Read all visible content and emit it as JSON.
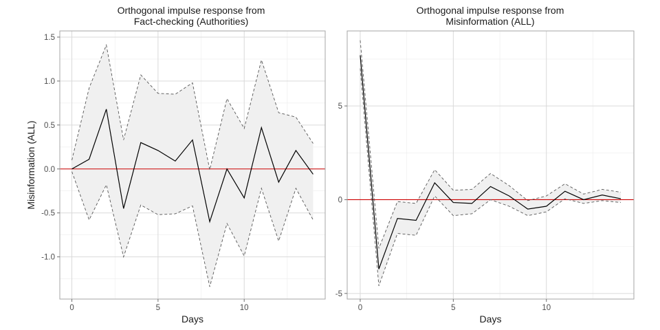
{
  "chart_data": [
    {
      "type": "line",
      "title": [
        "Orthogonal impulse response from",
        "Fact-checking  (Authorities)"
      ],
      "xlabel": "Days",
      "ylabel": "Misinformation (ALL)",
      "xlim": [
        -0.7,
        14.7
      ],
      "ylim": [
        -1.48,
        1.57
      ],
      "x_ticks": [
        0,
        5,
        10
      ],
      "x_tick_labels": [
        "0",
        "5",
        "10"
      ],
      "y_ticks": [
        -1.0,
        -0.5,
        0.0,
        0.5,
        1.0,
        1.5
      ],
      "y_tick_labels": [
        "-1.0",
        "-0.5",
        "0.0",
        "0.5",
        "1.0",
        "1.5"
      ],
      "grid": true,
      "zero_line_color": "#cc0000",
      "band_color": "#f0f0f0",
      "x": [
        0,
        1,
        2,
        3,
        4,
        5,
        6,
        7,
        8,
        9,
        10,
        11,
        12,
        13,
        14
      ],
      "series": [
        {
          "role": "response",
          "values": [
            0.0,
            0.11,
            0.68,
            -0.45,
            0.3,
            0.21,
            0.09,
            0.33,
            -0.6,
            0.0,
            -0.33,
            0.47,
            -0.15,
            0.21,
            -0.06
          ],
          "color": "#000000",
          "style": "solid"
        },
        {
          "role": "upper",
          "values": [
            0.1,
            0.92,
            1.41,
            0.33,
            1.07,
            0.86,
            0.85,
            0.98,
            -0.01,
            0.8,
            0.46,
            1.24,
            0.64,
            0.59,
            0.29
          ],
          "color": "#555555",
          "style": "dashed"
        },
        {
          "role": "lower",
          "values": [
            -0.03,
            -0.58,
            -0.18,
            -1.0,
            -0.41,
            -0.52,
            -0.51,
            -0.42,
            -1.34,
            -0.62,
            -0.99,
            -0.22,
            -0.82,
            -0.22,
            -0.58
          ],
          "color": "#555555",
          "style": "dashed"
        }
      ]
    },
    {
      "type": "line",
      "title": [
        "Orthogonal impulse response from",
        "Misinformation (ALL)"
      ],
      "xlabel": "Days",
      "ylabel": "",
      "xlim": [
        -0.7,
        14.7
      ],
      "ylim": [
        -5.3,
        9.0
      ],
      "x_ticks": [
        0,
        5,
        10
      ],
      "x_tick_labels": [
        "0",
        "5",
        "10"
      ],
      "y_ticks": [
        -5,
        0,
        5
      ],
      "y_tick_labels": [
        "-5",
        "0",
        "5"
      ],
      "grid": true,
      "zero_line_color": "#cc0000",
      "band_color": "#f0f0f0",
      "x": [
        0,
        1,
        2,
        3,
        4,
        5,
        6,
        7,
        8,
        9,
        10,
        11,
        12,
        13,
        14
      ],
      "series": [
        {
          "role": "response",
          "values": [
            7.7,
            -3.7,
            -1.0,
            -1.1,
            0.9,
            -0.15,
            -0.2,
            0.7,
            0.2,
            -0.5,
            -0.35,
            0.45,
            0.0,
            0.25,
            0.05
          ],
          "color": "#000000",
          "style": "solid"
        },
        {
          "role": "upper",
          "values": [
            8.5,
            -2.6,
            -0.1,
            -0.2,
            1.6,
            0.5,
            0.55,
            1.4,
            0.75,
            -0.05,
            0.2,
            0.85,
            0.3,
            0.55,
            0.4
          ],
          "color": "#555555",
          "style": "dashed"
        },
        {
          "role": "lower",
          "values": [
            7.0,
            -4.6,
            -1.8,
            -1.9,
            0.2,
            -0.85,
            -0.75,
            0.0,
            -0.35,
            -0.85,
            -0.65,
            0.05,
            -0.2,
            -0.05,
            -0.15
          ],
          "color": "#555555",
          "style": "dashed"
        }
      ]
    }
  ]
}
